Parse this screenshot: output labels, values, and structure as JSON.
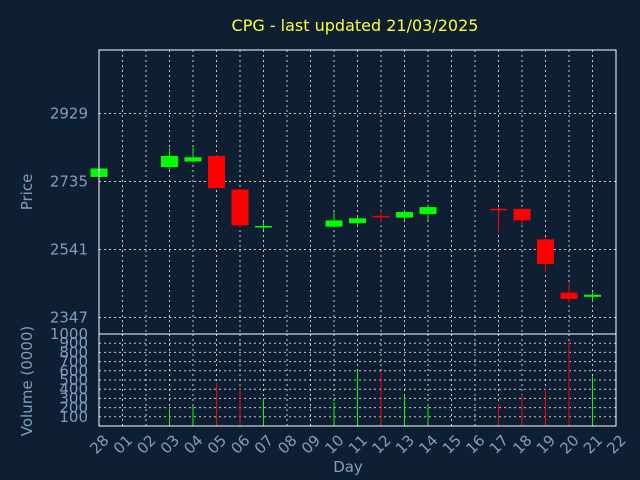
{
  "chart_data": {
    "type": "candlestick",
    "title": "CPG - last updated 21/03/2025",
    "xlabel": "Day",
    "colors": {
      "background": "#0f1f33",
      "up": "#00ff00",
      "down": "#ff0000",
      "title": "#ffff33",
      "axis_text": "#7f9fbf"
    },
    "x_ticks": [
      "28",
      "01",
      "02",
      "03",
      "04",
      "05",
      "06",
      "07",
      "08",
      "09",
      "10",
      "11",
      "12",
      "13",
      "14",
      "15",
      "16",
      "17",
      "18",
      "19",
      "20",
      "21",
      "22"
    ],
    "price_panel": {
      "ylabel": "Price",
      "y_ticks": [
        2347,
        2541,
        2735,
        2929
      ],
      "ylim": [
        2300,
        3110
      ],
      "grid": true,
      "candles": [
        {
          "day": "28",
          "open": 2748,
          "high": 2772,
          "low": 2748,
          "close": 2772
        },
        {
          "day": "03",
          "open": 2776,
          "high": 2830,
          "low": 2770,
          "close": 2808
        },
        {
          "day": "04",
          "open": 2792,
          "high": 2832,
          "low": 2790,
          "close": 2804
        },
        {
          "day": "05",
          "open": 2808,
          "high": 2810,
          "low": 2716,
          "close": 2716
        },
        {
          "day": "06",
          "open": 2712,
          "high": 2714,
          "low": 2604,
          "close": 2610
        },
        {
          "day": "07",
          "open": 2604,
          "high": 2620,
          "low": 2596,
          "close": 2608
        },
        {
          "day": "10",
          "open": 2606,
          "high": 2647,
          "low": 2604,
          "close": 2624
        },
        {
          "day": "11",
          "open": 2616,
          "high": 2633,
          "low": 2608,
          "close": 2630
        },
        {
          "day": "12",
          "open": 2637,
          "high": 2652,
          "low": 2620,
          "close": 2635
        },
        {
          "day": "13",
          "open": 2632,
          "high": 2652,
          "low": 2626,
          "close": 2648
        },
        {
          "day": "14",
          "open": 2642,
          "high": 2664,
          "low": 2626,
          "close": 2662
        },
        {
          "day": "17",
          "open": 2657,
          "high": 2661,
          "low": 2589,
          "close": 2654
        },
        {
          "day": "18",
          "open": 2657,
          "high": 2658,
          "low": 2609,
          "close": 2624
        },
        {
          "day": "19",
          "open": 2570,
          "high": 2574,
          "low": 2476,
          "close": 2500
        },
        {
          "day": "20",
          "open": 2418,
          "high": 2446,
          "low": 2390,
          "close": 2400
        },
        {
          "day": "21",
          "open": 2406,
          "high": 2418,
          "low": 2394,
          "close": 2412
        }
      ]
    },
    "volume_panel": {
      "ylabel": "Volume (0000)",
      "y_ticks": [
        100,
        200,
        300,
        400,
        500,
        600,
        700,
        800,
        900,
        1000
      ],
      "ylim": [
        0,
        1000
      ],
      "grid": true,
      "bars": [
        {
          "day": "03",
          "value": 190,
          "direction": "up"
        },
        {
          "day": "04",
          "value": 220,
          "direction": "up"
        },
        {
          "day": "05",
          "value": 470,
          "direction": "down"
        },
        {
          "day": "06",
          "value": 420,
          "direction": "down"
        },
        {
          "day": "07",
          "value": 300,
          "direction": "up"
        },
        {
          "day": "10",
          "value": 260,
          "direction": "up"
        },
        {
          "day": "11",
          "value": 600,
          "direction": "up"
        },
        {
          "day": "12",
          "value": 600,
          "direction": "down"
        },
        {
          "day": "13",
          "value": 340,
          "direction": "up"
        },
        {
          "day": "14",
          "value": 240,
          "direction": "up"
        },
        {
          "day": "17",
          "value": 240,
          "direction": "down"
        },
        {
          "day": "18",
          "value": 340,
          "direction": "down"
        },
        {
          "day": "19",
          "value": 400,
          "direction": "down"
        },
        {
          "day": "20",
          "value": 920,
          "direction": "down"
        },
        {
          "day": "21",
          "value": 540,
          "direction": "up"
        }
      ]
    }
  }
}
